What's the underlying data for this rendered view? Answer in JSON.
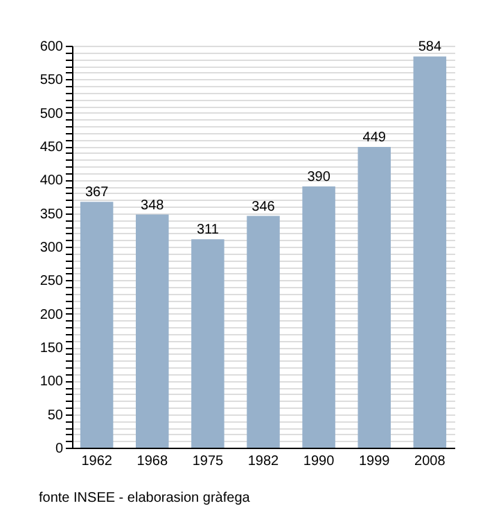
{
  "chart_data": {
    "type": "bar",
    "categories": [
      "1962",
      "1968",
      "1975",
      "1982",
      "1990",
      "1999",
      "2008"
    ],
    "values": [
      367,
      348,
      311,
      346,
      390,
      449,
      584
    ],
    "color": "#97b1cb",
    "data_labels": true,
    "grid": true,
    "ylim": [
      0,
      600
    ],
    "yticks": [
      0,
      {
        "value": 10,
        "label": null
      },
      {
        "value": 20,
        "label": null
      },
      {
        "value": 30,
        "label": null
      },
      {
        "value": 40,
        "label": null
      },
      50,
      {
        "value": 60,
        "label": null
      },
      {
        "value": 70,
        "label": null
      },
      {
        "value": 80,
        "label": null
      },
      {
        "value": 90,
        "label": null
      },
      100,
      {
        "value": 110,
        "label": null
      },
      {
        "value": 120,
        "label": null
      },
      {
        "value": 130,
        "label": null
      },
      {
        "value": 140,
        "label": null
      },
      150,
      {
        "value": 160,
        "label": null
      },
      {
        "value": 170,
        "label": null
      },
      {
        "value": 180,
        "label": null
      },
      {
        "value": 190,
        "label": null
      },
      200,
      {
        "value": 210,
        "label": null
      },
      {
        "value": 220,
        "label": null
      },
      {
        "value": 230,
        "label": null
      },
      {
        "value": 240,
        "label": null
      },
      250,
      {
        "value": 260,
        "label": null
      },
      {
        "value": 270,
        "label": null
      },
      {
        "value": 280,
        "label": null
      },
      {
        "value": 290,
        "label": null
      },
      300,
      {
        "value": 310,
        "label": null
      },
      {
        "value": 320,
        "label": null
      },
      {
        "value": 330,
        "label": null
      },
      {
        "value": 340,
        "label": null
      },
      350,
      {
        "value": 360,
        "label": null
      },
      {
        "value": 370,
        "label": null
      },
      {
        "value": 380,
        "label": null
      },
      {
        "value": 390,
        "label": null
      },
      400,
      {
        "value": 410,
        "label": null
      },
      {
        "value": 420,
        "label": null
      },
      {
        "value": 430,
        "label": null
      },
      {
        "value": 440,
        "label": null
      },
      450,
      {
        "value": 460,
        "label": null
      },
      {
        "value": 470,
        "label": null
      },
      {
        "value": 480,
        "label": null
      },
      {
        "value": 490,
        "label": null
      },
      500,
      {
        "value": 510,
        "label": null
      },
      {
        "value": 520,
        "label": null
      },
      {
        "value": 530,
        "label": null
      },
      {
        "value": 540,
        "label": null
      },
      550,
      {
        "value": 560,
        "label": null
      },
      {
        "value": 570,
        "label": null
      },
      {
        "value": 580,
        "label": null
      },
      {
        "value": 590,
        "label": null
      },
      600
    ],
    "annotations": [
      "fonte INSEE - elaborasion gràfega"
    ]
  }
}
